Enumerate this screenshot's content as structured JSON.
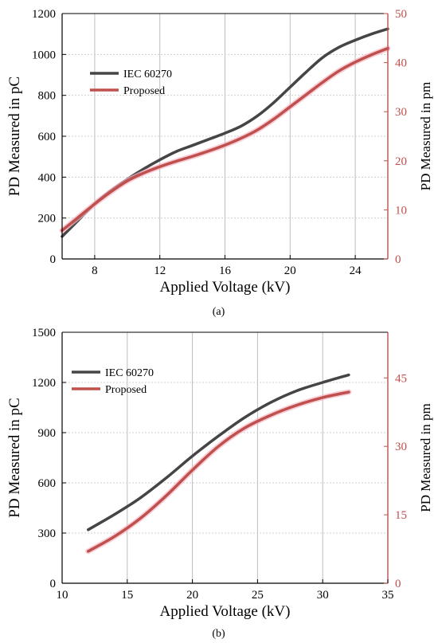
{
  "chart_data": [
    {
      "type": "line",
      "caption": "(a)",
      "xlabel": "Applied Voltage (kV)",
      "ylabel": "PD Measured in pC",
      "y2label": "PD Measured in pm",
      "xlim": [
        6,
        26
      ],
      "ylim": [
        0,
        1200
      ],
      "y2lim": [
        0,
        50
      ],
      "xticks": [
        8,
        12,
        16,
        20,
        24
      ],
      "yticks": [
        0,
        200,
        400,
        600,
        800,
        1000,
        1200
      ],
      "y2ticks": [
        0,
        10,
        20,
        30,
        40,
        50
      ],
      "grid": true,
      "legend_position": "top-left",
      "series": [
        {
          "name": "IEC 60270",
          "color": "#454545",
          "axis": "left",
          "x": [
            6,
            7,
            8,
            9,
            10,
            11,
            12,
            13,
            14,
            15,
            16,
            17,
            18,
            19,
            20,
            21,
            22,
            23,
            24,
            25,
            26
          ],
          "y": [
            110,
            190,
            270,
            335,
            390,
            440,
            485,
            525,
            555,
            585,
            615,
            650,
            700,
            765,
            840,
            915,
            985,
            1035,
            1070,
            1100,
            1125
          ]
        },
        {
          "name": "Proposed",
          "color": "#c0504d",
          "axis": "right",
          "x": [
            6,
            7,
            8,
            9,
            10,
            11,
            12,
            13,
            14,
            15,
            16,
            17,
            18,
            19,
            20,
            21,
            22,
            23,
            24,
            25,
            26
          ],
          "y": [
            5.8,
            8.5,
            11.2,
            13.7,
            15.9,
            17.5,
            18.8,
            19.9,
            20.9,
            22.0,
            23.2,
            24.6,
            26.3,
            28.5,
            31.0,
            33.5,
            36.0,
            38.3,
            40.1,
            41.6,
            42.9
          ]
        }
      ]
    },
    {
      "type": "line",
      "caption": "(b)",
      "xlabel": "Applied Voltage (kV)",
      "ylabel": "PD Measured in pC",
      "y2label": "PD Measured in pm",
      "xlim": [
        10,
        35
      ],
      "ylim": [
        0,
        1500
      ],
      "y2lim": [
        0,
        55
      ],
      "xticks": [
        10,
        15,
        20,
        25,
        30,
        35
      ],
      "yticks": [
        0,
        300,
        600,
        900,
        1200,
        1500
      ],
      "y2ticks": [
        0,
        15,
        30,
        45
      ],
      "grid": true,
      "legend_position": "top-left",
      "series": [
        {
          "name": "IEC 60270",
          "color": "#454545",
          "axis": "left",
          "x": [
            12,
            14,
            16,
            18,
            20,
            22,
            24,
            26,
            28,
            30,
            32
          ],
          "y": [
            320,
            410,
            510,
            630,
            760,
            880,
            990,
            1080,
            1150,
            1200,
            1245
          ]
        },
        {
          "name": "Proposed",
          "color": "#c0504d",
          "axis": "right",
          "x": [
            12,
            14,
            16,
            18,
            20,
            22,
            24,
            26,
            28,
            30,
            32
          ],
          "y": [
            7.0,
            10.2,
            14.2,
            19.2,
            24.8,
            30.0,
            34.0,
            36.8,
            39.0,
            40.7,
            41.9
          ]
        }
      ]
    }
  ]
}
